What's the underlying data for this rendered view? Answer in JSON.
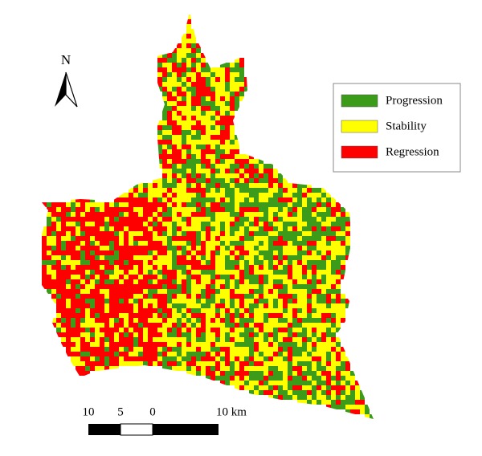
{
  "north_arrow": {
    "label": "N"
  },
  "legend": {
    "items": [
      {
        "label": "Progression",
        "color": "#3c9b18"
      },
      {
        "label": "Stability",
        "color": "#ffff00"
      },
      {
        "label": "Regression",
        "color": "#ff0000"
      }
    ]
  },
  "scale_bar": {
    "labels": [
      "10",
      "5",
      "0",
      "10 km"
    ]
  }
}
